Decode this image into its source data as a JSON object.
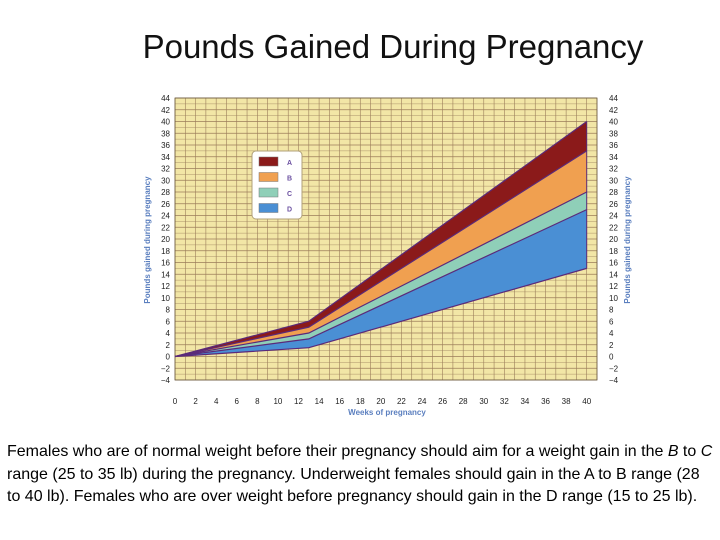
{
  "caption": {
    "p1": "Females who are of normal weight before their pregnancy should aim for a weight gain in the ",
    "b": "B",
    "p2": " to ",
    "c": "C",
    "p3": " range (25 to 35 lb) during the  pregnancy. Underweight females should gain in the A to B range (28 to 40 lb). Females who are over weight  before pregnancy should gain in the D range (15 to 25 lb)."
  },
  "chart_data": {
    "type": "area",
    "title": "Pounds Gained During Pregnancy",
    "xlabel": "Weeks of pregnancy",
    "ylabel": "Pounds gained during pregnancy",
    "ylabel_right": "Pounds gained during pregnancy",
    "xlim": [
      0,
      40
    ],
    "ylim": [
      -4,
      44
    ],
    "xticks": [
      0,
      2,
      4,
      6,
      8,
      10,
      12,
      14,
      16,
      18,
      20,
      22,
      24,
      26,
      28,
      30,
      32,
      34,
      36,
      38,
      40
    ],
    "yticks": [
      -4,
      -2,
      0,
      2,
      4,
      6,
      8,
      10,
      12,
      14,
      16,
      18,
      20,
      22,
      24,
      26,
      28,
      30,
      32,
      34,
      36,
      38,
      40,
      42,
      44
    ],
    "grid": true,
    "legend_position": "top-left",
    "boundaries": {
      "x": [
        0,
        13,
        40
      ],
      "y40": [
        0,
        6,
        40
      ],
      "y35": [
        0,
        5,
        35
      ],
      "y28": [
        0,
        4,
        28
      ],
      "y25": [
        0,
        3,
        25
      ],
      "y15": [
        0,
        1.5,
        15
      ]
    },
    "series": [
      {
        "name": "A",
        "color": "#8b1a1a",
        "lower": "y35",
        "upper": "y40"
      },
      {
        "name": "B",
        "color": "#f0a050",
        "lower": "y28",
        "upper": "y35"
      },
      {
        "name": "C",
        "color": "#8fcfb8",
        "lower": "y25",
        "upper": "y28"
      },
      {
        "name": "D",
        "color": "#4a8fd4",
        "lower": "y15",
        "upper": "y25"
      }
    ],
    "plot_bg": "#f2e6a6",
    "grid_color": "#9b7d5a"
  }
}
